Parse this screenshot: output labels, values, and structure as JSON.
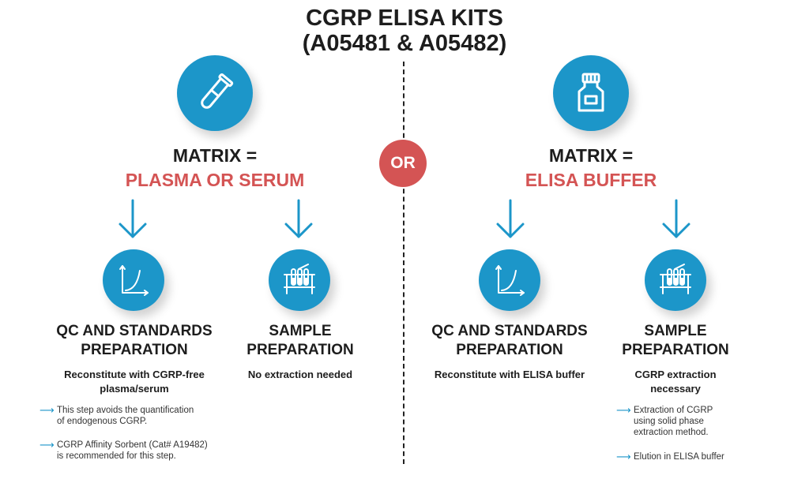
{
  "title": {
    "line1": "CGRP ELISA KITS",
    "line2": "(A05481 & A05482)"
  },
  "or_label": "OR",
  "left": {
    "icon": "test-tube-icon",
    "matrix_label": "MATRIX =",
    "matrix_value": "PLASMA OR SERUM",
    "col1": {
      "icon": "growth-curve-icon",
      "heading_line1": "QC AND STANDARDS",
      "heading_line2": "PREPARATION",
      "sub_line1": "Reconstitute with CGRP-free",
      "sub_line2": "plasma/serum",
      "notes": [
        {
          "line1": "This step avoids the quantification",
          "line2": "of endogenous CGRP."
        },
        {
          "line1": "CGRP Affinity Sorbent (Cat# A19482)",
          "line2": "is recommended for this step."
        }
      ]
    },
    "col2": {
      "icon": "test-tube-rack-icon",
      "heading_line1": "SAMPLE",
      "heading_line2": "PREPARATION",
      "sub_line1": "No extraction needed"
    }
  },
  "right": {
    "icon": "bottle-icon",
    "matrix_label": "MATRIX =",
    "matrix_value": "ELISA BUFFER",
    "col1": {
      "icon": "growth-curve-icon",
      "heading_line1": "QC AND STANDARDS",
      "heading_line2": "PREPARATION",
      "sub_line1": "Reconstitute with ELISA buffer"
    },
    "col2": {
      "icon": "test-tube-rack-icon",
      "heading_line1": "SAMPLE",
      "heading_line2": "PREPARATION",
      "sub_line1": "CGRP extraction",
      "sub_line2": "necessary",
      "notes": [
        {
          "line1": "Extraction of CGRP",
          "line2": "using solid phase",
          "line3": "extraction method."
        },
        {
          "line1": "Elution in ELISA buffer"
        }
      ]
    }
  },
  "colors": {
    "accent_blue": "#1c96c9",
    "accent_red": "#d45454",
    "text_dark": "#1d1d1d"
  }
}
